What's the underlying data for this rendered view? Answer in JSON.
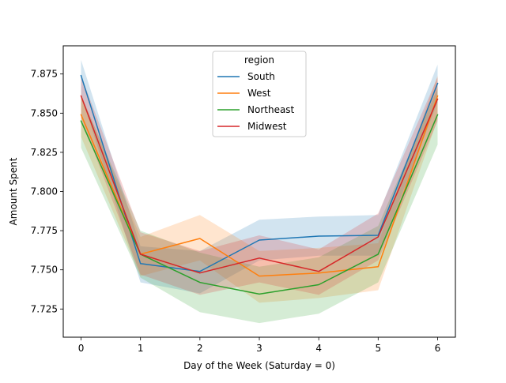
{
  "chart_data": {
    "type": "line",
    "title": "",
    "xlabel": "Day of the Week (Saturday = 0)",
    "ylabel": "Amount Spent",
    "x": [
      0,
      1,
      2,
      3,
      4,
      5,
      6
    ],
    "xlim": [
      -0.3,
      6.3
    ],
    "ylim": [
      7.707,
      7.893
    ],
    "xticks": [
      "0",
      "1",
      "2",
      "3",
      "4",
      "5",
      "6"
    ],
    "yticks": [
      "7.725",
      "7.750",
      "7.775",
      "7.800",
      "7.825",
      "7.850",
      "7.875"
    ],
    "yticks_values": [
      7.725,
      7.75,
      7.775,
      7.8,
      7.825,
      7.85,
      7.875
    ],
    "grid": false,
    "legend": {
      "title": "region",
      "placement": "top-center"
    },
    "series": [
      {
        "name": "South",
        "color": "#1f77b4",
        "values": [
          7.874,
          7.754,
          7.749,
          7.769,
          7.7715,
          7.772,
          7.869
        ],
        "ci_lower": [
          7.862,
          7.742,
          7.735,
          7.756,
          7.759,
          7.759,
          7.857
        ],
        "ci_upper": [
          7.884,
          7.765,
          7.762,
          7.782,
          7.784,
          7.785,
          7.881
        ]
      },
      {
        "name": "West",
        "color": "#ff7f0e",
        "values": [
          7.849,
          7.76,
          7.77,
          7.746,
          7.748,
          7.752,
          7.861
        ],
        "ci_lower": [
          7.835,
          7.746,
          7.756,
          7.729,
          7.732,
          7.737,
          7.846
        ],
        "ci_upper": [
          7.862,
          7.771,
          7.785,
          7.762,
          7.764,
          7.767,
          7.874
        ]
      },
      {
        "name": "Northeast",
        "color": "#2ca02c",
        "values": [
          7.845,
          7.76,
          7.742,
          7.7345,
          7.7405,
          7.76,
          7.849
        ],
        "ci_lower": [
          7.828,
          7.745,
          7.723,
          7.716,
          7.722,
          7.742,
          7.83
        ],
        "ci_upper": [
          7.861,
          7.775,
          7.761,
          7.752,
          7.758,
          7.778,
          7.866
        ]
      },
      {
        "name": "Midwest",
        "color": "#d62728",
        "values": [
          7.861,
          7.76,
          7.748,
          7.7575,
          7.749,
          7.771,
          7.859
        ],
        "ci_lower": [
          7.847,
          7.747,
          7.734,
          7.742,
          7.734,
          7.756,
          7.845
        ],
        "ci_upper": [
          7.874,
          7.774,
          7.762,
          7.772,
          7.763,
          7.786,
          7.873
        ]
      }
    ]
  }
}
